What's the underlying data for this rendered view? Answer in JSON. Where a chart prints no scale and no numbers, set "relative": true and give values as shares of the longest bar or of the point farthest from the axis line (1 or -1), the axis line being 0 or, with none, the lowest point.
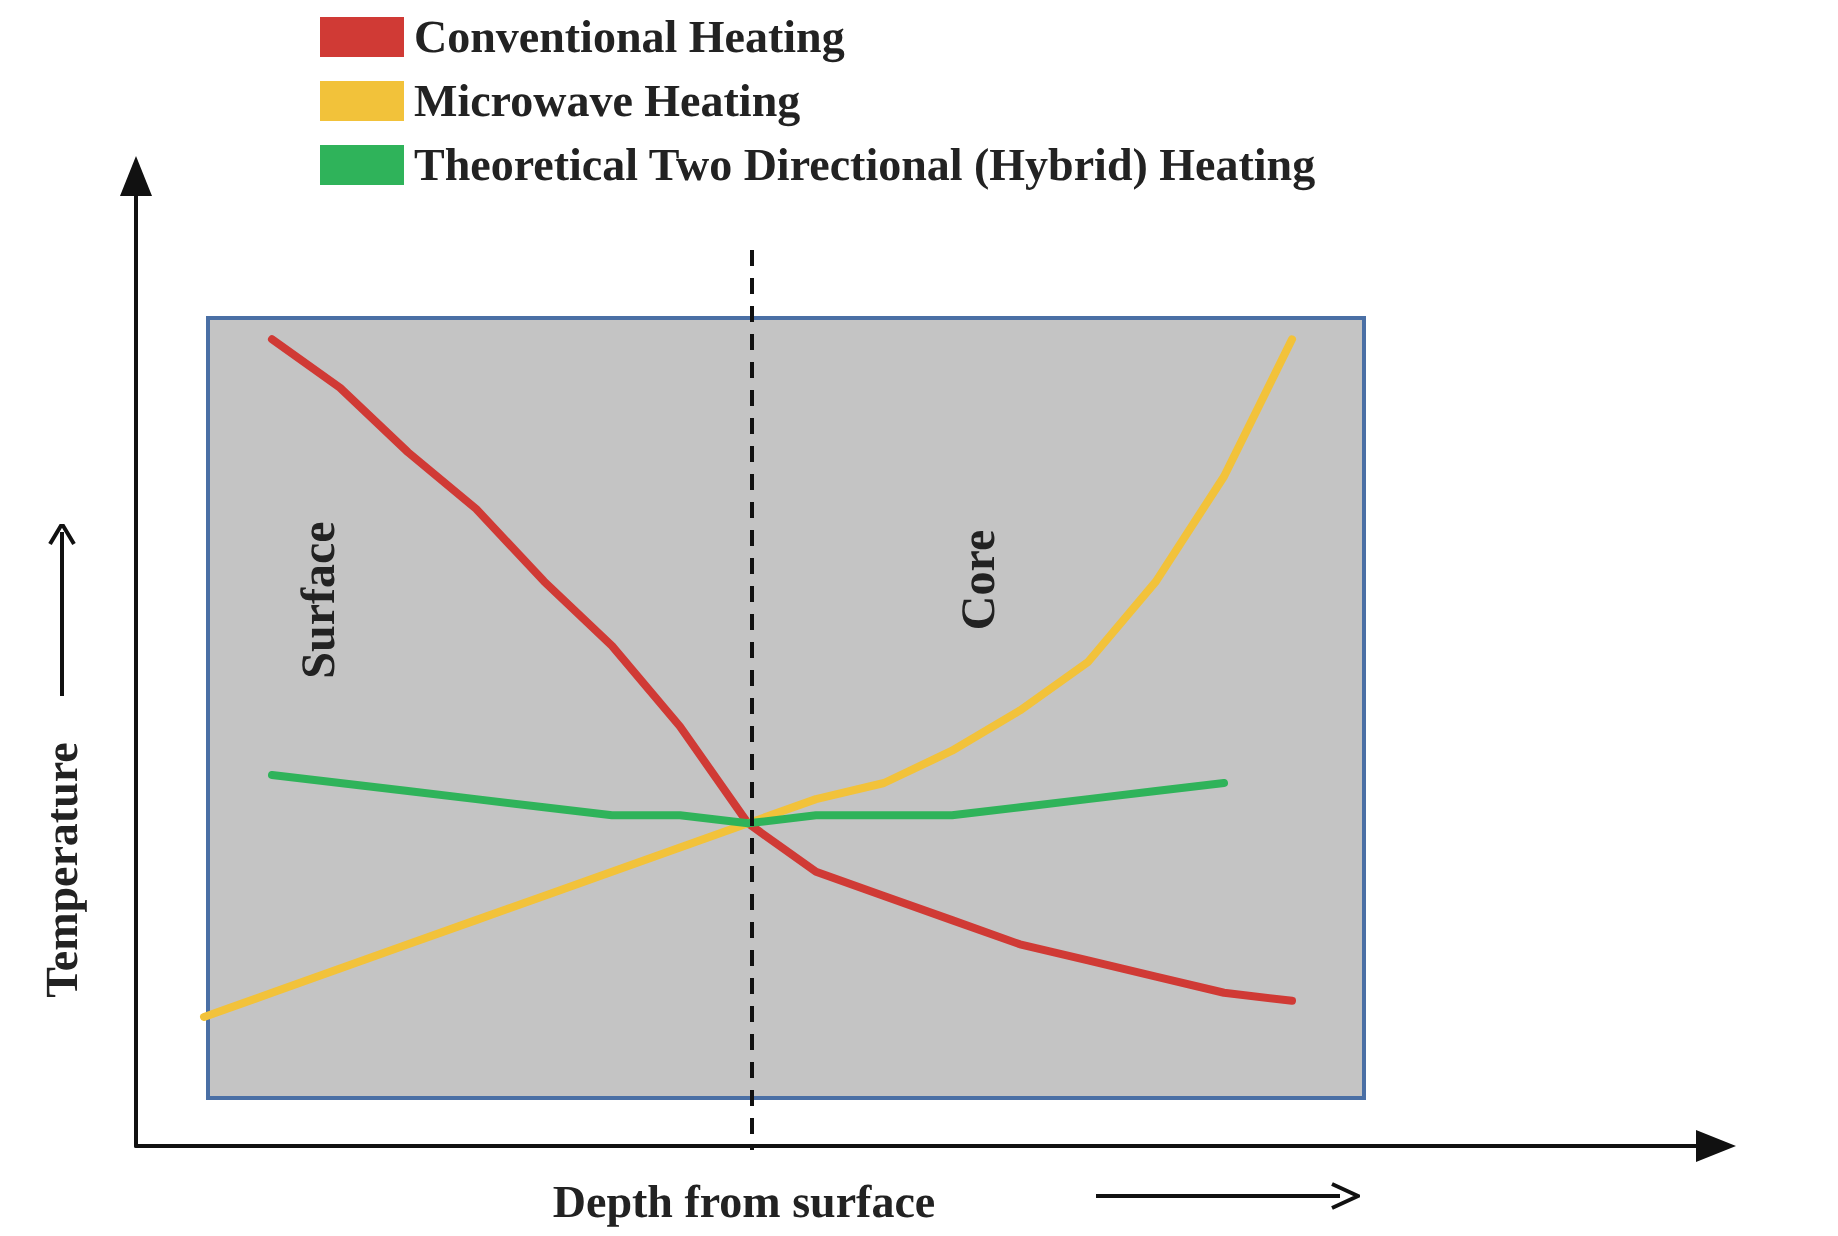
{
  "chart_data": {
    "type": "line",
    "relative": true,
    "xlabel": "Depth from surface",
    "ylabel": "Temperature",
    "legend": "top left",
    "marker": "none",
    "line_style": "solid",
    "categories": [
      null,
      null,
      null,
      null,
      null,
      null,
      null,
      null,
      null,
      null,
      null,
      null,
      null,
      null,
      null,
      null,
      null,
      null,
      null,
      null,
      null,
      null,
      null,
      null
    ],
    "series": [
      {
        "name": "Conventional Heating",
        "color": "#d03a35",
        "values": [
          null,
          null,
          1,
          0.94,
          0.86,
          0.79,
          0.7,
          0.62,
          0.52,
          0.4,
          0.34,
          0.31,
          0.28,
          0.25,
          0.23,
          0.21,
          0.19,
          0.18,
          null,
          null,
          null,
          null,
          null,
          null
        ]
      },
      {
        "name": "Microwave Heating",
        "color": "#f2c23a",
        "values": [
          null,
          0.16,
          0.19,
          0.22,
          0.25,
          0.28,
          0.31,
          0.34,
          0.37,
          0.4,
          0.43,
          0.45,
          0.49,
          0.54,
          0.6,
          0.7,
          0.83,
          1,
          null,
          null,
          null,
          null,
          null,
          null
        ]
      },
      {
        "name": "Theoretical Two Directional (Hybrid) Heating",
        "color": "#2fb35a",
        "values": [
          null,
          null,
          0.46,
          0.45,
          0.44,
          0.43,
          0.42,
          0.41,
          0.41,
          0.4,
          0.41,
          0.41,
          0.41,
          0.42,
          0.43,
          0.44,
          0.45,
          null,
          null,
          null,
          null,
          null,
          null,
          null
        ]
      }
    ],
    "annotations": [
      "Surface",
      "Core"
    ]
  }
}
